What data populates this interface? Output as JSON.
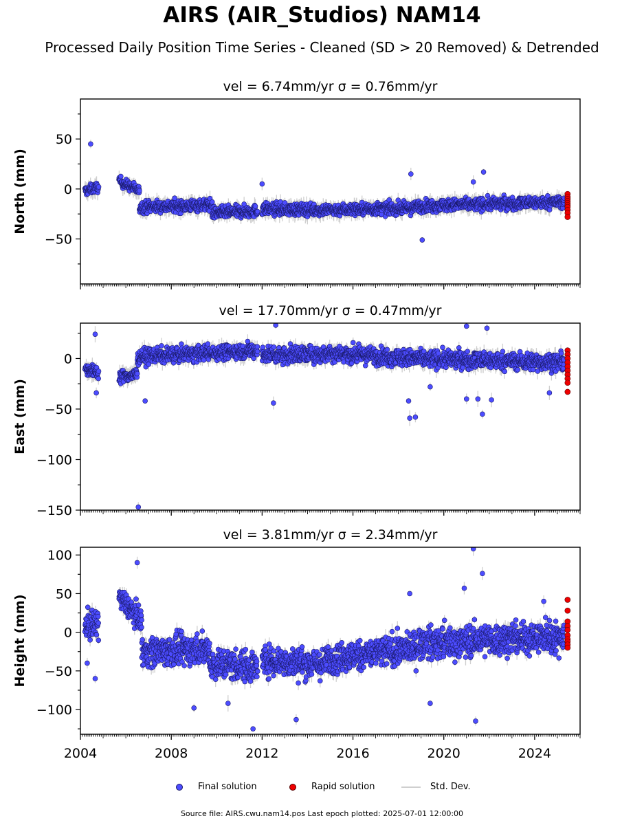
{
  "title": "AIRS (AIR_Studios) NAM14",
  "subtitle": "Processed Daily Position Time Series - Cleaned (SD > 20 Removed) & Detrended",
  "colors": {
    "final": "#4c4cff",
    "final_edge": "#1a1a6a",
    "rapid": "#ee0000",
    "stddev": "#cfcfcf"
  },
  "legend": {
    "final": "Final solution",
    "rapid": "Rapid solution",
    "stddev": "Std. Dev."
  },
  "source_note": "Source file: AIRS.cwu.nam14.pos  Last epoch plotted: 2025-07-01 12:00:00",
  "chart_data": [
    {
      "type": "scatter",
      "title": "vel = 6.74mm/yr   σ = 0.76mm/yr",
      "ylabel": "North (mm)",
      "xlim": [
        2004.0,
        2026.0
      ],
      "ylim": [
        -95,
        90
      ],
      "yticks": [
        -50,
        0,
        50
      ],
      "series": [
        {
          "name": "Final solution",
          "segments": [
            {
              "x": [
                2004.2,
                2004.8
              ],
              "y": [
                -2,
                2
              ],
              "spread": 4
            },
            {
              "x": [
                2005.7,
                2006.6
              ],
              "y": [
                8,
                -2
              ],
              "spread": 4
            },
            {
              "x": [
                2006.6,
                2009.8
              ],
              "y": [
                -18,
                -16
              ],
              "spread": 5
            },
            {
              "x": [
                2009.8,
                2011.8
              ],
              "y": [
                -24,
                -22
              ],
              "spread": 5
            },
            {
              "x": [
                2012.0,
                2014.8
              ],
              "y": [
                -20,
                -21
              ],
              "spread": 5
            },
            {
              "x": [
                2014.8,
                2018.8
              ],
              "y": [
                -21,
                -19
              ],
              "spread": 5
            },
            {
              "x": [
                2018.8,
                2025.3
              ],
              "y": [
                -17,
                -13
              ],
              "spread": 5
            }
          ],
          "outliers": [
            [
              2004.45,
              45
            ],
            [
              2018.55,
              15
            ],
            [
              2019.05,
              -51
            ],
            [
              2021.75,
              17
            ],
            [
              2021.3,
              7
            ],
            [
              2012.0,
              5
            ]
          ]
        },
        {
          "name": "Rapid solution",
          "x": 2025.45,
          "y": [
            -5,
            -8,
            -10,
            -12,
            -14,
            -16,
            -18,
            -21,
            -24,
            -28
          ]
        }
      ]
    },
    {
      "type": "scatter",
      "title": "vel = 17.70mm/yr   σ = 0.47mm/yr",
      "ylabel": "East (mm)",
      "xlim": [
        2004.0,
        2026.0
      ],
      "ylim": [
        -150,
        35
      ],
      "yticks": [
        -150,
        -100,
        -50,
        0
      ],
      "series": [
        {
          "name": "Final solution",
          "segments": [
            {
              "x": [
                2004.2,
                2004.8
              ],
              "y": [
                -10,
                -14
              ],
              "spread": 5
            },
            {
              "x": [
                2005.7,
                2006.5
              ],
              "y": [
                -18,
                -16
              ],
              "spread": 5
            },
            {
              "x": [
                2006.5,
                2011.8
              ],
              "y": [
                2,
                8
              ],
              "spread": 6
            },
            {
              "x": [
                2012.0,
                2014.8
              ],
              "y": [
                4,
                4
              ],
              "spread": 7
            },
            {
              "x": [
                2014.8,
                2018.8
              ],
              "y": [
                6,
                0
              ],
              "spread": 7
            },
            {
              "x": [
                2018.8,
                2025.3
              ],
              "y": [
                0,
                -4
              ],
              "spread": 7
            }
          ],
          "outliers": [
            [
              2004.65,
              24
            ],
            [
              2004.7,
              -34
            ],
            [
              2006.55,
              -147
            ],
            [
              2006.85,
              -42
            ],
            [
              2012.5,
              -44
            ],
            [
              2012.6,
              33
            ],
            [
              2018.45,
              -42
            ],
            [
              2018.5,
              -59
            ],
            [
              2018.75,
              -58
            ],
            [
              2021.0,
              -40
            ],
            [
              2021.5,
              -40
            ],
            [
              2021.7,
              -55
            ],
            [
              2022.1,
              -41
            ],
            [
              2021.0,
              32
            ],
            [
              2021.9,
              30
            ],
            [
              2024.65,
              -34
            ],
            [
              2019.4,
              -28
            ]
          ]
        },
        {
          "name": "Rapid solution",
          "x": 2025.45,
          "y": [
            8,
            4,
            0,
            -4,
            -8,
            -12,
            -16,
            -20,
            -24,
            -33
          ]
        }
      ]
    },
    {
      "type": "scatter",
      "title": "vel = 3.81mm/yr   σ = 2.34mm/yr",
      "ylabel": "Height (mm)",
      "xlim": [
        2004.0,
        2026.0
      ],
      "ylim": [
        -132,
        110
      ],
      "yticks": [
        -100,
        -50,
        0,
        50,
        100
      ],
      "xticks": [
        2004,
        2008,
        2012,
        2016,
        2020,
        2024
      ],
      "series": [
        {
          "name": "Final solution",
          "segments": [
            {
              "x": [
                2004.2,
                2004.8
              ],
              "y": [
                8,
                10
              ],
              "spread": 16
            },
            {
              "x": [
                2005.7,
                2006.7
              ],
              "y": [
                45,
                15
              ],
              "spread": 12
            },
            {
              "x": [
                2006.7,
                2009.7
              ],
              "y": [
                -25,
                -22
              ],
              "spread": 16
            },
            {
              "x": [
                2009.7,
                2011.8
              ],
              "y": [
                -40,
                -45
              ],
              "spread": 17
            },
            {
              "x": [
                2012.0,
                2014.8
              ],
              "y": [
                -36,
                -42
              ],
              "spread": 16
            },
            {
              "x": [
                2014.8,
                2018.8
              ],
              "y": [
                -35,
                -20
              ],
              "spread": 16
            },
            {
              "x": [
                2018.8,
                2025.3
              ],
              "y": [
                -15,
                -5
              ],
              "spread": 17
            }
          ],
          "outliers": [
            [
              2004.65,
              -60
            ],
            [
              2006.5,
              90
            ],
            [
              2004.3,
              -40
            ],
            [
              2009.0,
              -98
            ],
            [
              2010.5,
              -92
            ],
            [
              2011.6,
              -125
            ],
            [
              2013.5,
              -113
            ],
            [
              2019.4,
              -92
            ],
            [
              2021.3,
              108
            ],
            [
              2021.7,
              76
            ],
            [
              2021.4,
              -115
            ],
            [
              2020.9,
              57
            ],
            [
              2018.5,
              50
            ],
            [
              2024.4,
              40
            ]
          ]
        },
        {
          "name": "Rapid solution",
          "x": 2025.45,
          "y": [
            42,
            28,
            14,
            8,
            3,
            -4,
            -9,
            -12,
            -16,
            -20
          ]
        }
      ]
    }
  ]
}
